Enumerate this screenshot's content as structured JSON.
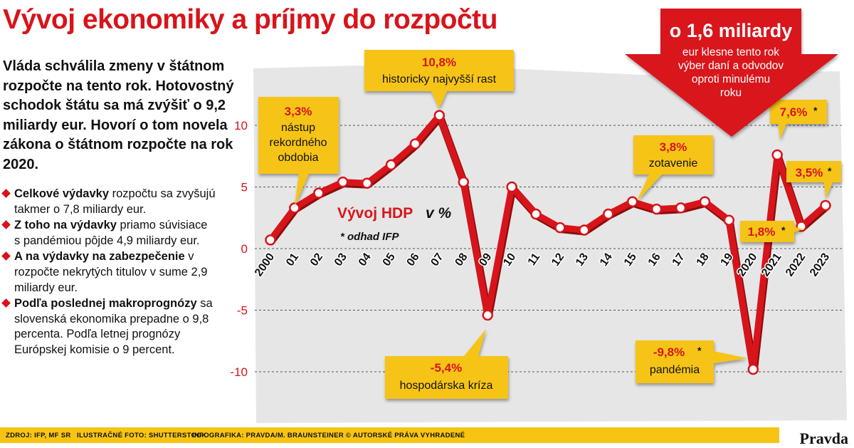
{
  "title": "Vývoj ekonomiky a príjmy do rozpočtu",
  "intro": "Vláda schválila zmeny v štátnom rozpočte na tento rok. Hotovostný schodok štátu sa má zvýšiť o 9,2 miliardy eur. Hovorí o tom novela zákona o štátnom rozpočte na rok 2020.",
  "bullets": [
    {
      "bold": "Celkové výdavky",
      "text": " rozpočtu sa zvyšujú takmer o 7,8 miliardy eur."
    },
    {
      "bold": "Z toho na výdavky",
      "text": " priamo súvisiace s pandémiou pôjde 4,9 miliardy eur."
    },
    {
      "bold": "A na výdavky na zabezpečenie",
      "text": " v rozpočte nekrytých titulov v sume 2,9 miliardy eur."
    },
    {
      "bold": "Podľa poslednej makroprognózy",
      "text": " sa slovenská ekonomika prepadne o 9,8 percenta. Podľa letnej prognózy Európskej komisie o 9 percent."
    }
  ],
  "arrow_callout": {
    "headline": "o 1,6 miliardy",
    "text_lines": [
      "eur klesne tento rok",
      "výber daní a odvodov",
      "oproti minulému",
      "roku"
    ]
  },
  "footer": {
    "source": "ZDROJ: IFP, MF SR",
    "photo": "ILUSTRAČNÉ FOTO: SHUTTERSTOCK",
    "credit": "INFOGRAFIKA: PRAVDA/M. BRAUNSTEINER © AUTORSKÉ PRÁVA VYHRADENÉ",
    "logo": "Pravda"
  },
  "colors": {
    "accent_red": "#d8141b",
    "callout_yellow": "#f6c412",
    "chart_bg": "#e6e6e6"
  },
  "chart_data": {
    "type": "line",
    "title": "Vývoj HDP",
    "title_unit": "v %",
    "note": "* odhad IFP",
    "x": [
      "2000",
      "01",
      "02",
      "03",
      "04",
      "05",
      "06",
      "07",
      "08",
      "09",
      "10",
      "11",
      "12",
      "13",
      "14",
      "15",
      "16",
      "17",
      "18",
      "19",
      "2020",
      "2021",
      "2022",
      "2023"
    ],
    "series": [
      {
        "name": "Vývoj HDP",
        "values": [
          0.7,
          3.3,
          4.5,
          5.4,
          5.3,
          6.8,
          8.5,
          10.8,
          5.4,
          -5.4,
          5.0,
          2.8,
          1.7,
          1.5,
          2.8,
          3.8,
          3.2,
          3.3,
          3.8,
          2.3,
          -9.8,
          7.6,
          1.8,
          3.5
        ]
      }
    ],
    "yticks": [
      10,
      5,
      0,
      -5,
      -10
    ],
    "ylim": [
      -11,
      12
    ],
    "grid": true,
    "annotations": [
      {
        "index": 1,
        "value": "3,3%",
        "star": false,
        "label_lines": [
          "nástup",
          "rekordného",
          "obdobia"
        ]
      },
      {
        "index": 7,
        "value": "10,8%",
        "star": false,
        "label_lines": [
          "historicky najvyšší rast"
        ]
      },
      {
        "index": 9,
        "value": "-5,4%",
        "star": false,
        "label_lines": [
          "hospodárska kríza"
        ]
      },
      {
        "index": 15,
        "value": "3,8%",
        "star": false,
        "label_lines": [
          "zotavenie"
        ]
      },
      {
        "index": 20,
        "value": "-9,8%",
        "star": true,
        "label_lines": [
          "pandémia"
        ]
      },
      {
        "index": 21,
        "value": "7,6%",
        "star": true,
        "label_lines": []
      },
      {
        "index": 22,
        "value": "1,8%",
        "star": true,
        "label_lines": []
      },
      {
        "index": 23,
        "value": "3,5%",
        "star": true,
        "label_lines": []
      }
    ]
  }
}
